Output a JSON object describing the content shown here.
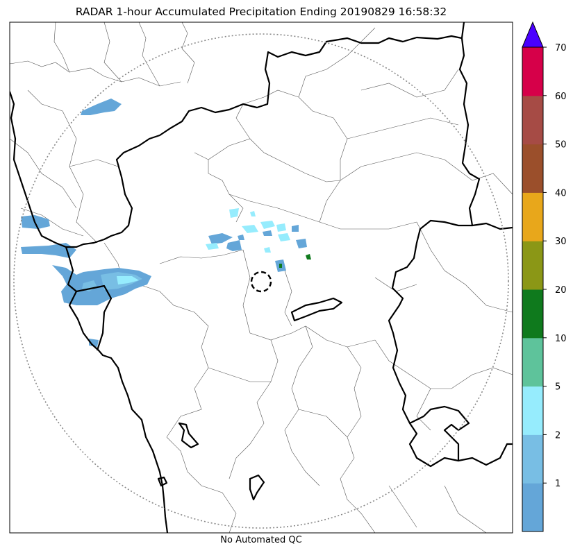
{
  "title": "RADAR 1-hour Accumulated Precipitation Ending 20190829 16:58:32",
  "footer_note": "No Automated QC",
  "colorbar": {
    "levels": [
      "1",
      "2",
      "5",
      "10",
      "20",
      "30",
      "40",
      "50",
      "60",
      "70"
    ],
    "colors": [
      "#64a6d8",
      "#78bee4",
      "#96ecfd",
      "#5ec39b",
      "#0f7a1d",
      "#8b9716",
      "#e8a71b",
      "#9b4f2b",
      "#a64b45",
      "#d60049"
    ],
    "extend_color": "#4a00ff",
    "extend": "max"
  },
  "colors": {
    "state_border": "#000000",
    "district_border": "#555555",
    "range_ring": "#888888"
  }
}
